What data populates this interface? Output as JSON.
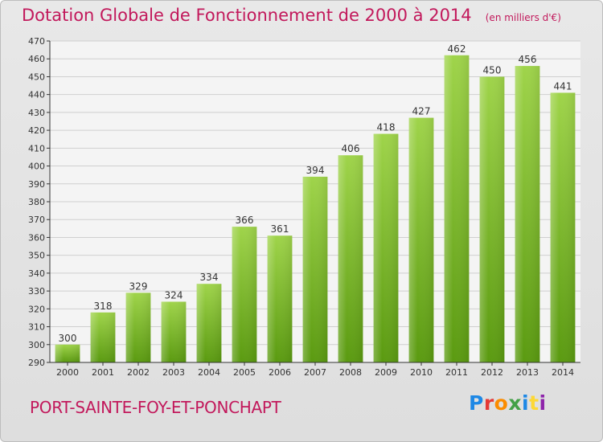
{
  "header": {
    "title": "Dotation Globale de Fonctionnement de 2000 à 2014",
    "subtitle": "(en milliers d'€)"
  },
  "footer": {
    "commune": "PORT-SAINTE-FOY-ET-PONCHAPT",
    "logo_text": "Proxiti",
    "logo_colors": [
      "#1e88e5",
      "#e53935",
      "#fb8c00",
      "#43a047",
      "#1e88e5",
      "#fdd835",
      "#8e24aa"
    ]
  },
  "colors": {
    "title": "#c2185b",
    "bar_top": "#9fd44a",
    "bar_bottom": "#5a9a10",
    "grid": "#cfcfcf",
    "axis": "#333333"
  },
  "chart_data": {
    "type": "bar",
    "categories": [
      "2000",
      "2001",
      "2002",
      "2003",
      "2004",
      "2005",
      "2006",
      "2007",
      "2008",
      "2009",
      "2010",
      "2011",
      "2012",
      "2013",
      "2014"
    ],
    "values": [
      300,
      318,
      329,
      324,
      334,
      366,
      361,
      394,
      406,
      418,
      427,
      462,
      450,
      456,
      441
    ],
    "ylim": [
      290,
      470
    ],
    "ytick_step": 10,
    "grid": true,
    "xlabel": "",
    "ylabel": ""
  }
}
